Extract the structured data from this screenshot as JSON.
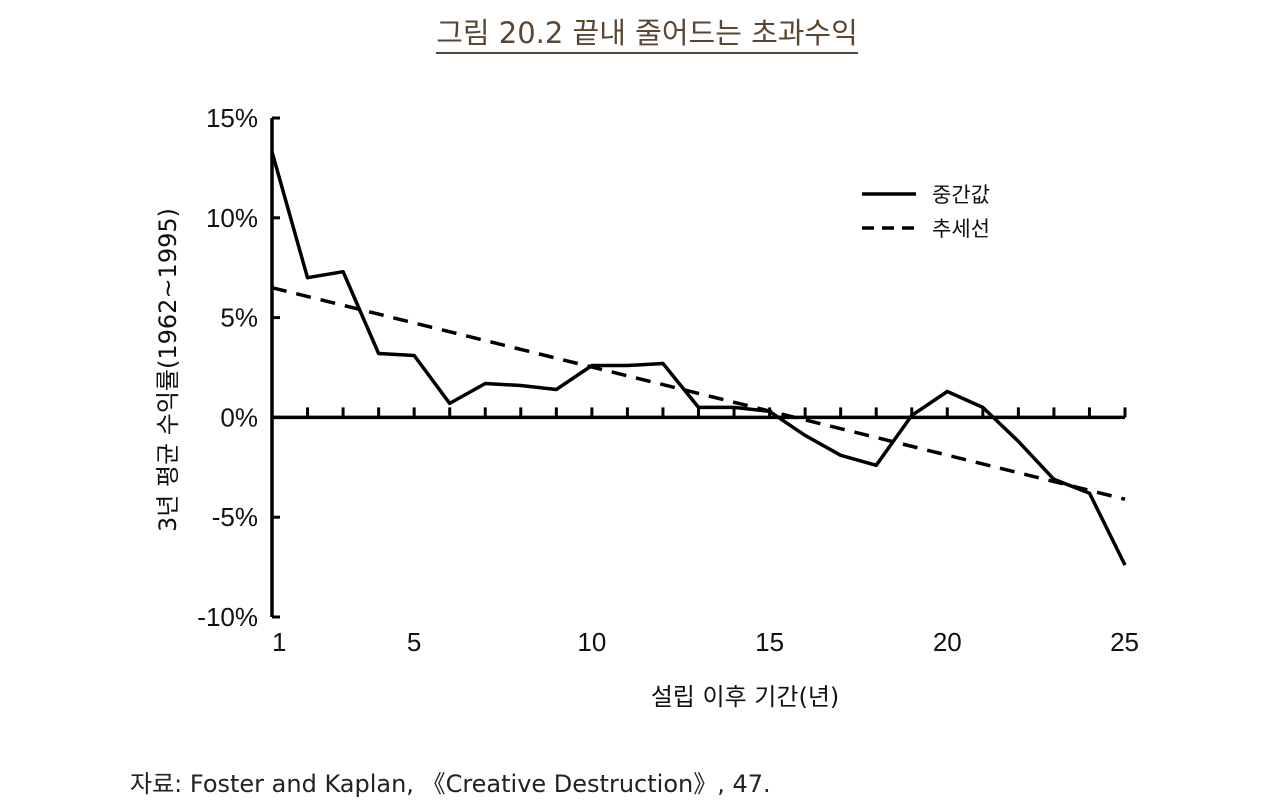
{
  "figure": {
    "title": "그림 20.2 끝내 줄어드는 초과수익",
    "source": "자료: Foster and Kaplan, 《Creative Destruction》, 47."
  },
  "chart_data": {
    "type": "line",
    "title": "그림 20.2 끝내 줄어드는 초과수익",
    "xlabel": "설립 이후 기간(년)",
    "ylabel": "3년 평균 수익률(1962~1995)",
    "xlim": [
      1,
      25
    ],
    "ylim": [
      -10,
      15
    ],
    "x_ticks": [
      1,
      5,
      10,
      15,
      20,
      25
    ],
    "x_tick_labels": [
      "1",
      "5",
      "10",
      "15",
      "20",
      "25"
    ],
    "y_ticks": [
      15,
      10,
      5,
      0,
      -5,
      -10
    ],
    "y_tick_labels": [
      "15%",
      "10%",
      "5%",
      "0%",
      "-5%",
      "-10%"
    ],
    "grid": false,
    "legend_position": "top-right",
    "series": [
      {
        "name": "중간값",
        "style": "solid",
        "color": "#000000",
        "x": [
          1,
          2,
          3,
          4,
          5,
          6,
          7,
          8,
          9,
          10,
          11,
          12,
          13,
          14,
          15,
          16,
          17,
          18,
          19,
          20,
          21,
          22,
          23,
          24,
          25
        ],
        "values": [
          13.3,
          7.0,
          7.3,
          3.2,
          3.1,
          0.7,
          1.7,
          1.6,
          1.4,
          2.6,
          2.6,
          2.7,
          0.5,
          0.5,
          0.3,
          -0.9,
          -1.9,
          -2.4,
          0.1,
          1.3,
          0.5,
          -1.2,
          -3.1,
          -3.8,
          -7.4
        ]
      },
      {
        "name": "추세선",
        "style": "dashed",
        "color": "#000000",
        "x": [
          1,
          25
        ],
        "values": [
          6.5,
          -4.1
        ]
      }
    ]
  }
}
